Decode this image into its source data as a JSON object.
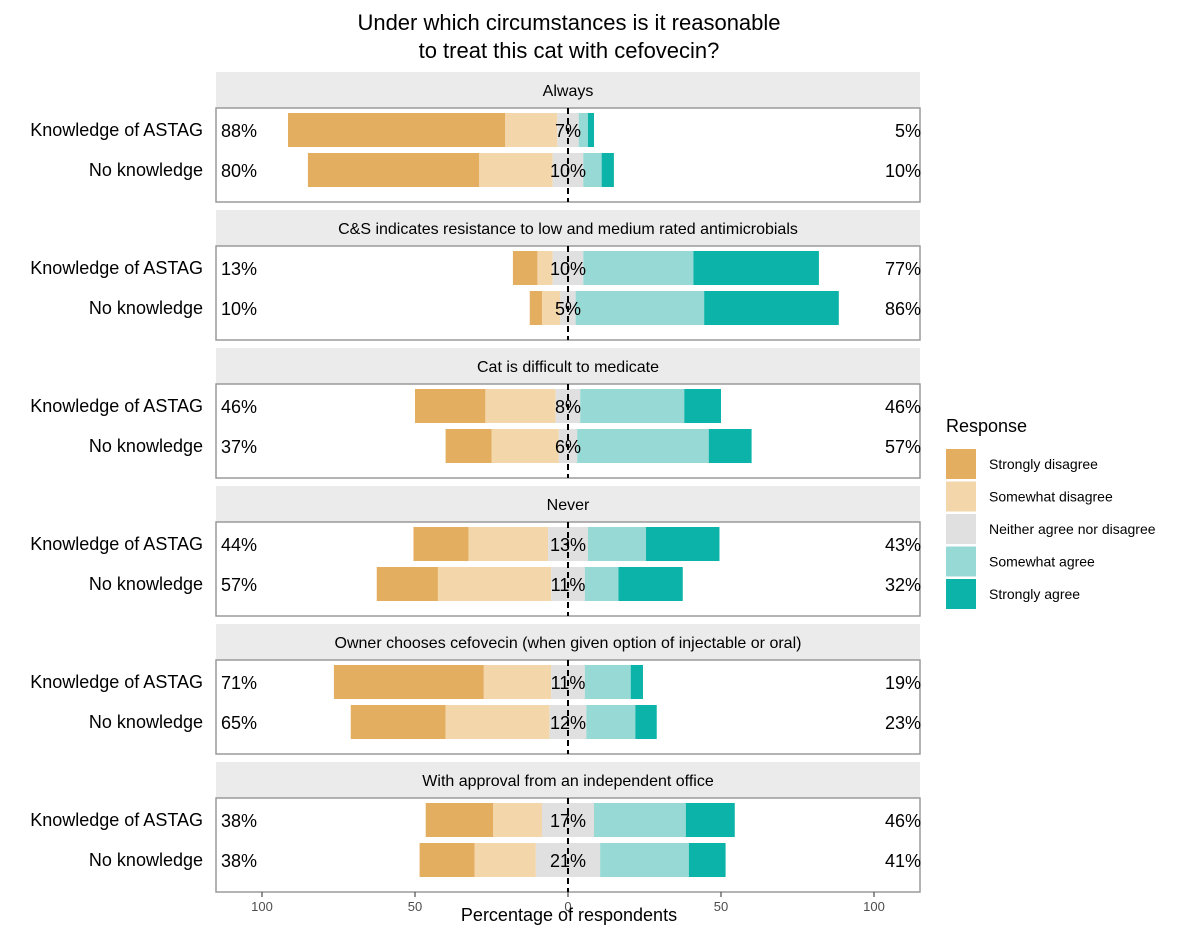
{
  "chart_data": {
    "type": "bar",
    "subtype": "diverging-stacked-likert",
    "title_line1": "Under which circumstances is it reasonable",
    "title_line2": "to treat this cat with cefovecin?",
    "xlabel": "Percentage of respondents",
    "xlim": [
      -100,
      100
    ],
    "x_ticks": [
      -100,
      -50,
      0,
      50,
      100
    ],
    "x_tick_labels": [
      "100",
      "50",
      "0",
      "50",
      "100"
    ],
    "groups": [
      "Knowledge of ASTAG",
      "No knowledge"
    ],
    "legend": {
      "title": "Response",
      "placement": "right",
      "levels": [
        "Strongly disagree",
        "Somewhat disagree",
        "Neither agree nor disagree",
        "Somewhat agree",
        "Strongly agree"
      ],
      "colors": [
        "#E3AE60",
        "#F3D6AA",
        "#E0E0E0",
        "#97D9D4",
        "#0CB3A8"
      ]
    },
    "panels": [
      {
        "name": "Always",
        "rows": [
          {
            "group": "Knowledge of ASTAG",
            "values": [
              71,
              17,
              7,
              3,
              2
            ],
            "left_label": "88%",
            "neutral_label": "7%",
            "right_label": "5%"
          },
          {
            "group": "No knowledge",
            "values": [
              56,
              24,
              10,
              6,
              4
            ],
            "left_label": "80%",
            "neutral_label": "10%",
            "right_label": "10%"
          }
        ]
      },
      {
        "name": "C&S indicates resistance to low and medium rated antimicrobials",
        "rows": [
          {
            "group": "Knowledge of ASTAG",
            "values": [
              8,
              5,
              10,
              36,
              41
            ],
            "left_label": "13%",
            "neutral_label": "10%",
            "right_label": "77%"
          },
          {
            "group": "No knowledge",
            "values": [
              4,
              6,
              5,
              42,
              44
            ],
            "left_label": "10%",
            "neutral_label": "5%",
            "right_label": "86%"
          }
        ]
      },
      {
        "name": "Cat is difficult to medicate",
        "rows": [
          {
            "group": "Knowledge of ASTAG",
            "values": [
              23,
              23,
              8,
              34,
              12
            ],
            "left_label": "46%",
            "neutral_label": "8%",
            "right_label": "46%"
          },
          {
            "group": "No knowledge",
            "values": [
              15,
              22,
              6,
              43,
              14
            ],
            "left_label": "37%",
            "neutral_label": "6%",
            "right_label": "57%"
          }
        ]
      },
      {
        "name": "Never",
        "rows": [
          {
            "group": "Knowledge of ASTAG",
            "values": [
              18,
              26,
              13,
              19,
              24
            ],
            "left_label": "44%",
            "neutral_label": "13%",
            "right_label": "43%"
          },
          {
            "group": "No knowledge",
            "values": [
              20,
              37,
              11,
              11,
              21
            ],
            "left_label": "57%",
            "neutral_label": "11%",
            "right_label": "32%"
          }
        ]
      },
      {
        "name": "Owner chooses cefovecin (when given option of injectable or oral)",
        "rows": [
          {
            "group": "Knowledge of ASTAG",
            "values": [
              49,
              22,
              11,
              15,
              4
            ],
            "left_label": "71%",
            "neutral_label": "11%",
            "right_label": "19%"
          },
          {
            "group": "No knowledge",
            "values": [
              31,
              34,
              12,
              16,
              7
            ],
            "left_label": "65%",
            "neutral_label": "12%",
            "right_label": "23%"
          }
        ]
      },
      {
        "name": "With approval from an independent office",
        "rows": [
          {
            "group": "Knowledge of ASTAG",
            "values": [
              22,
              16,
              17,
              30,
              16
            ],
            "left_label": "38%",
            "neutral_label": "17%",
            "right_label": "46%"
          },
          {
            "group": "No knowledge",
            "values": [
              18,
              20,
              21,
              29,
              12
            ],
            "left_label": "38%",
            "neutral_label": "21%",
            "right_label": "41%"
          }
        ]
      }
    ]
  }
}
